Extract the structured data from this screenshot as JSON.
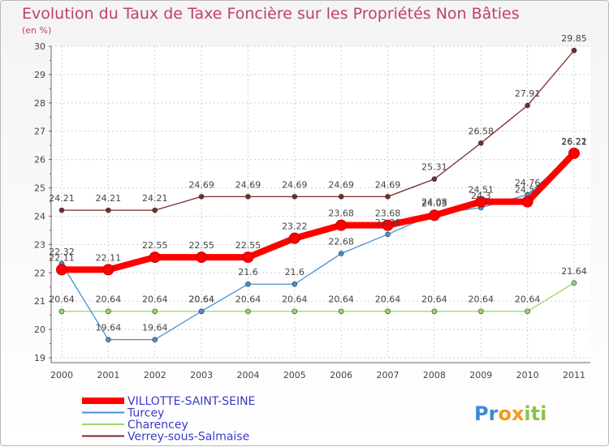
{
  "chart_data": {
    "type": "line",
    "title": "Evolution du Taux de Taxe Foncière sur les Propriétés Non Bâties",
    "subtitle": "(en %)",
    "x": [
      "2000",
      "2001",
      "2002",
      "2003",
      "2004",
      "2005",
      "2006",
      "2007",
      "2008",
      "2009",
      "2010",
      "2011"
    ],
    "ylim": [
      19,
      30
    ],
    "yticks": [
      19,
      20,
      21,
      22,
      23,
      24,
      25,
      26,
      27,
      28,
      29,
      30
    ],
    "grid": true,
    "legend_position": "bottom-left",
    "series": [
      {
        "name": "VILLOTTE-SAINT-SEINE",
        "color": "#ff0000",
        "values": [
          22.11,
          22.11,
          22.55,
          22.55,
          22.55,
          23.22,
          23.68,
          23.68,
          24.03,
          24.51,
          24.51,
          26.22
        ],
        "labels": [
          "22.11",
          "22.11",
          "22.55",
          "22.55",
          "22.55",
          "23.22",
          "23.68",
          "23.68",
          "24.03",
          "24.51",
          "24.51",
          "26.22"
        ]
      },
      {
        "name": "Turcey",
        "color": "#4a8fd0",
        "values": [
          22.32,
          19.64,
          19.64,
          20.64,
          21.6,
          21.6,
          22.68,
          23.36,
          24.08,
          24.3,
          24.76,
          26.21
        ],
        "labels": [
          "22.32",
          "19.64",
          "19.64",
          "20.64",
          "21.6",
          "21.6",
          "22.68",
          "23.36",
          "24.08",
          "24.3",
          "24.76",
          "26.21"
        ]
      },
      {
        "name": "Charencey",
        "color": "#9ad66a",
        "values": [
          20.64,
          20.64,
          20.64,
          20.64,
          20.64,
          20.64,
          20.64,
          20.64,
          20.64,
          20.64,
          20.64,
          21.64
        ],
        "labels": [
          "20.64",
          "20.64",
          "20.64",
          "20.64",
          "20.64",
          "20.64",
          "20.64",
          "20.64",
          "20.64",
          "20.64",
          "20.64",
          "21.64"
        ]
      },
      {
        "name": "Verrey-sous-Salmaise",
        "color": "#7a2a2a",
        "values": [
          24.21,
          24.21,
          24.21,
          24.69,
          24.69,
          24.69,
          24.69,
          24.69,
          25.31,
          26.58,
          27.91,
          29.85
        ],
        "labels": [
          "24.21",
          "24.21",
          "24.21",
          "24.69",
          "24.69",
          "24.69",
          "24.69",
          "24.69",
          "25.31",
          "26.58",
          "27.91",
          "29.85"
        ]
      }
    ]
  },
  "logo": {
    "letters": [
      "P",
      "r",
      "o",
      "x",
      "i",
      "t",
      "i"
    ],
    "colors": [
      "#3b8ad8",
      "#3b8ad8",
      "#f29a1c",
      "#f29a1c",
      "#8bc34a",
      "#8bc34a",
      "#8bc34a"
    ]
  }
}
